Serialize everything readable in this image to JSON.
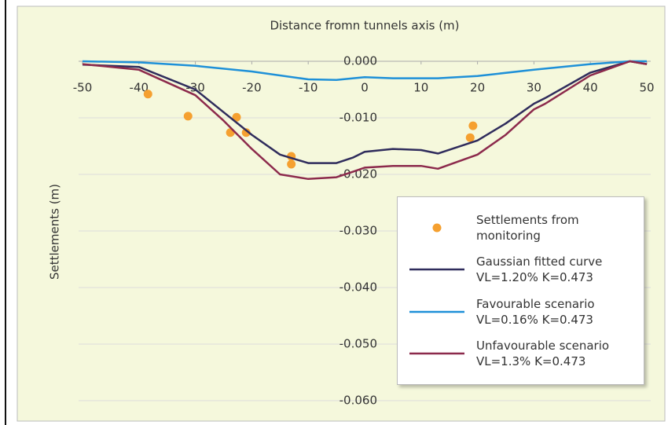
{
  "chart_data": {
    "type": "line",
    "title": "Distance fromn tunnels axis (m)",
    "y_label": "Settlements (m)",
    "xlim": [
      -50,
      50
    ],
    "xticks": [
      -50,
      -40,
      -30,
      -20,
      -10,
      0,
      10,
      20,
      30,
      40,
      50
    ],
    "ylim": [
      -0.06,
      0.001
    ],
    "yticks": [
      {
        "value": 0,
        "label": "0.000"
      },
      {
        "value": -0.01,
        "label": "-0.010"
      },
      {
        "value": -0.02,
        "label": "-0.020"
      },
      {
        "value": -0.03,
        "label": "-0.030"
      },
      {
        "value": -0.04,
        "label": "-0.040"
      },
      {
        "value": -0.05,
        "label": "-0.050"
      },
      {
        "value": -0.06,
        "label": "-0.060"
      }
    ],
    "grid": true,
    "series": [
      {
        "name": "Settlements from\nmonitoring",
        "type": "scatter",
        "color": "#f5a030",
        "x": [
          -38.4,
          -31.3,
          -22.7,
          -23.8,
          -21.0,
          -13.0,
          -13.0,
          18.7,
          19.2
        ],
        "values": [
          -0.0058,
          -0.0097,
          -0.0099,
          -0.0126,
          -0.0126,
          -0.0168,
          -0.0182,
          -0.0135,
          -0.0114
        ]
      },
      {
        "name": "Gaussian fitted curve\nVL=1.20% K=0.473",
        "type": "line",
        "color": "#2f2c5c",
        "x": [
          -50,
          -40,
          -30,
          -25,
          -20,
          -15,
          -10,
          -5,
          -2,
          0,
          5,
          10,
          13,
          20,
          25,
          30,
          32,
          40,
          47,
          50
        ],
        "values": [
          -0.0006,
          -0.001,
          -0.005,
          -0.009,
          -0.013,
          -0.0165,
          -0.018,
          -0.018,
          -0.017,
          -0.016,
          -0.0155,
          -0.0157,
          -0.0163,
          -0.014,
          -0.011,
          -0.0075,
          -0.0065,
          -0.002,
          0,
          -0.0005
        ]
      },
      {
        "name": "Favourable scenario\nVL=0.16% K=0.473",
        "type": "line",
        "color": "#1e90d8",
        "x": [
          -50,
          -40,
          -30,
          -20,
          -10,
          -5,
          -2,
          0,
          5,
          10,
          13,
          20,
          30,
          40,
          47,
          50
        ],
        "values": [
          0,
          -0.0002,
          -0.0008,
          -0.0018,
          -0.0032,
          -0.0033,
          -0.003,
          -0.0028,
          -0.003,
          -0.003,
          -0.003,
          -0.0026,
          -0.0015,
          -0.0005,
          0,
          0
        ]
      },
      {
        "name": "Unfavourable scenario\nVL=1.3% K=0.473",
        "type": "line",
        "color": "#8c2a4c",
        "x": [
          -50,
          -40,
          -30,
          -25,
          -20,
          -15,
          -10,
          -5,
          -2,
          0,
          5,
          10,
          13,
          20,
          25,
          30,
          32,
          40,
          47,
          50
        ],
        "values": [
          -0.0005,
          -0.0015,
          -0.006,
          -0.0105,
          -0.0155,
          -0.02,
          -0.0208,
          -0.0205,
          -0.0195,
          -0.0188,
          -0.0185,
          -0.0185,
          -0.019,
          -0.0165,
          -0.013,
          -0.0085,
          -0.0075,
          -0.0025,
          0,
          -0.0005
        ]
      }
    ]
  }
}
